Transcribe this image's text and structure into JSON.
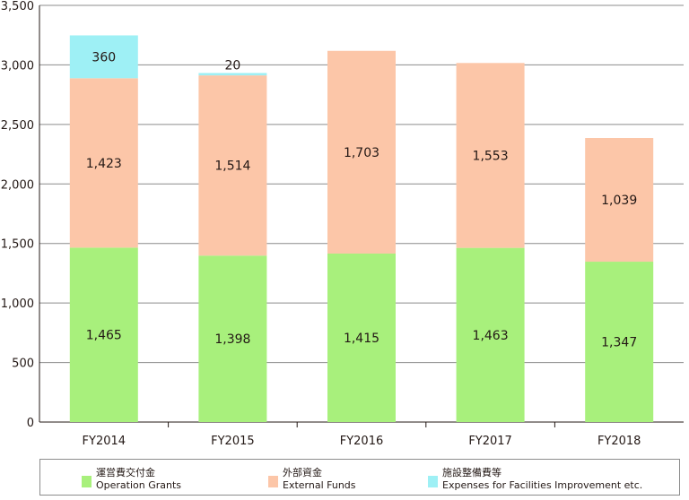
{
  "chart_data": {
    "type": "bar",
    "stacked": true,
    "categories": [
      "FY2014",
      "FY2015",
      "FY2016",
      "FY2017",
      "FY2018"
    ],
    "series": [
      {
        "name": "運営費交付金 Operation Grants",
        "name_ja": "運営費交付金",
        "name_en": "Operation Grants",
        "color": "#a8f07c",
        "values": [
          1465,
          1398,
          1415,
          1463,
          1347
        ],
        "labels": [
          "1,465",
          "1,398",
          "1,415",
          "1,463",
          "1,347"
        ]
      },
      {
        "name": "外部資金 External Funds",
        "name_ja": "外部資金",
        "name_en": "External Funds",
        "color": "#fcc6a8",
        "values": [
          1423,
          1514,
          1703,
          1553,
          1039
        ],
        "labels": [
          "1,423",
          "1,514",
          "1,703",
          "1,553",
          "1,039"
        ]
      },
      {
        "name": "施設整備費等 Expenses for Facilities Improvement etc.",
        "name_ja": "施設整備費等",
        "name_en": "Expenses for Facilities Improvement etc.",
        "color": "#9ef0f5",
        "values": [
          360,
          20,
          0,
          0,
          0
        ],
        "labels": [
          "360",
          "20",
          "",
          "",
          ""
        ]
      }
    ],
    "ylim": [
      0,
      3500
    ],
    "yticks": [
      "0",
      "500",
      "1,000",
      "1,500",
      "2,000",
      "2,500",
      "3,000",
      "3,500"
    ],
    "ytick_values": [
      0,
      500,
      1000,
      1500,
      2000,
      2500,
      3000,
      3500
    ],
    "grid": true,
    "legend_position": "bottom"
  }
}
